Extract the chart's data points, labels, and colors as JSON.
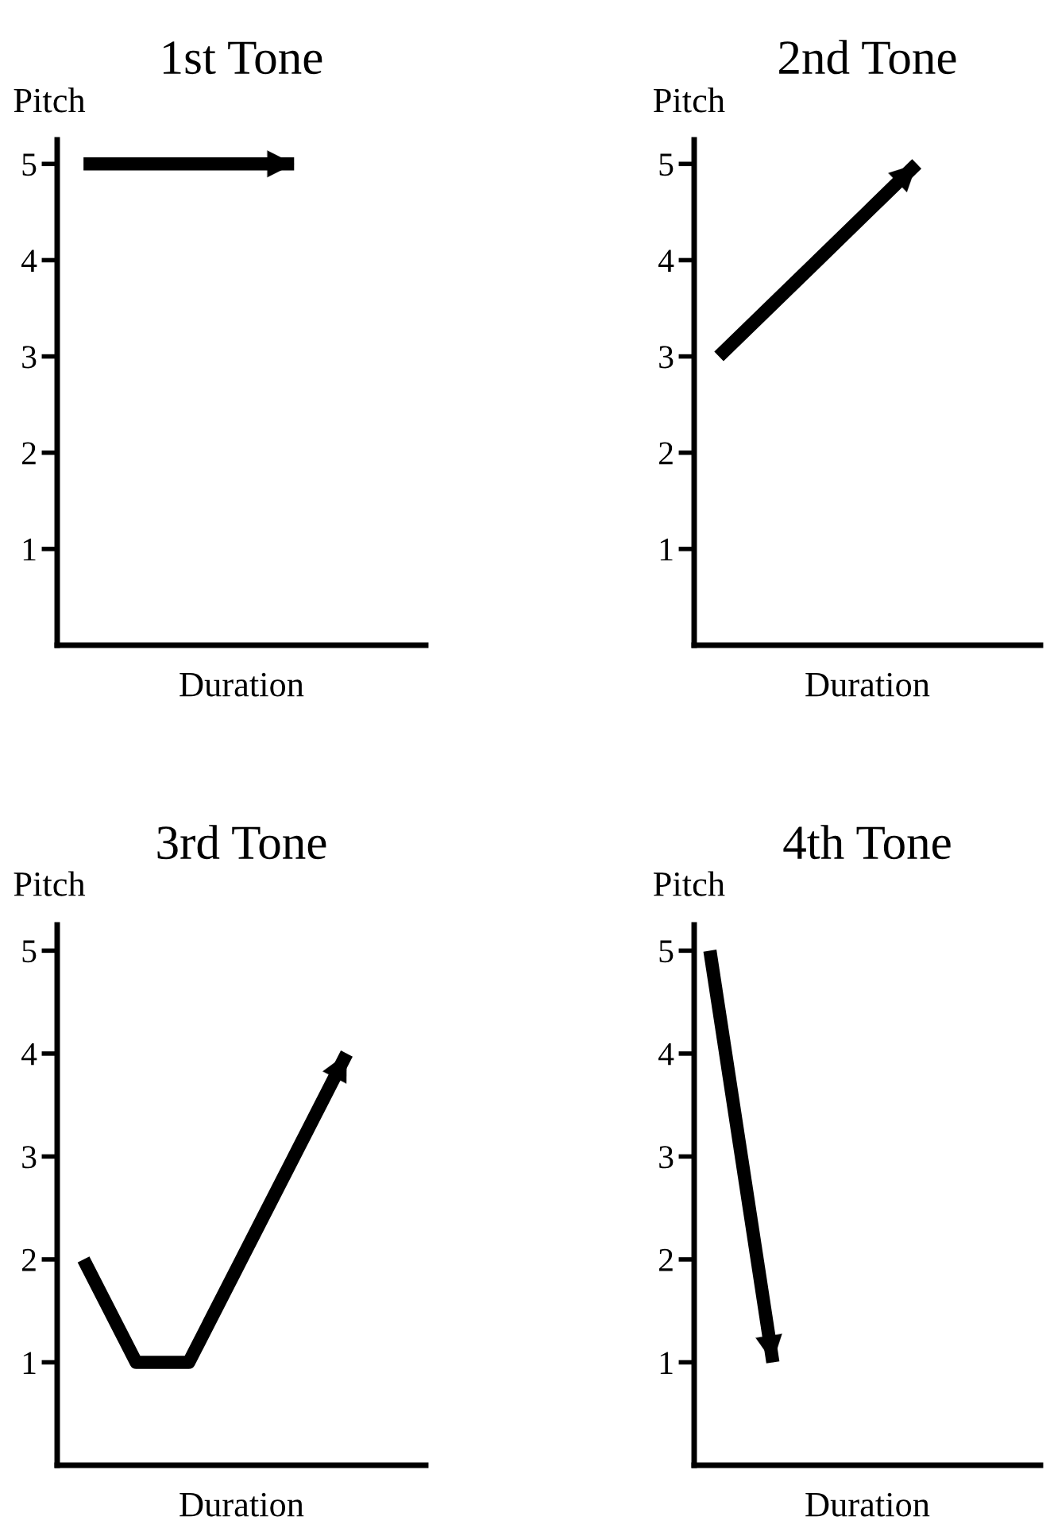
{
  "chart_data": [
    {
      "type": "line",
      "title": "1st Tone",
      "ylabel": "Pitch",
      "xlabel": "Duration",
      "categories": [
        null,
        null,
        null,
        null,
        null,
        null,
        null
      ],
      "series": [
        {
          "color": "#000000",
          "values": [
            5,
            5,
            5,
            5,
            5,
            null,
            null
          ]
        }
      ],
      "ylim": [
        0,
        5.25
      ],
      "yticks": [
        1,
        2,
        3,
        4,
        5
      ],
      "tick_labels": "y",
      "line_style": "solid",
      "grid": false
    },
    {
      "type": "line",
      "title": "2nd Tone",
      "ylabel": "Pitch",
      "xlabel": "Duration",
      "categories": [
        null,
        null,
        null,
        null,
        null,
        null,
        null
      ],
      "series": [
        {
          "color": "#000000",
          "values": [
            3,
            3.5,
            4,
            4.5,
            5,
            null,
            null
          ]
        }
      ],
      "ylim": [
        0,
        5.25
      ],
      "yticks": [
        1,
        2,
        3,
        4,
        5
      ],
      "tick_labels": "y",
      "line_style": "solid",
      "grid": false
    },
    {
      "type": "line",
      "title": "3rd Tone",
      "ylabel": "Pitch",
      "xlabel": "Duration",
      "categories": [
        null,
        null,
        null,
        null,
        null,
        null,
        null
      ],
      "series": [
        {
          "color": "#000000",
          "values": [
            2,
            1,
            1,
            2,
            3,
            4,
            null
          ]
        }
      ],
      "ylim": [
        0,
        5.25
      ],
      "yticks": [
        1,
        2,
        3,
        4,
        5
      ],
      "tick_labels": "y",
      "line_style": "solid",
      "grid": false
    },
    {
      "type": "line",
      "title": "4th Tone",
      "ylabel": "Pitch",
      "xlabel": "Duration",
      "categories": [
        null,
        null,
        null,
        null,
        null,
        null,
        null,
        null,
        null,
        null,
        null
      ],
      "series": [
        {
          "color": "#000000",
          "values": [
            5,
            3,
            1,
            null,
            null,
            null,
            null,
            null,
            null,
            null,
            null
          ]
        }
      ],
      "ylim": [
        0,
        5.25
      ],
      "yticks": [
        1,
        2,
        3,
        4,
        5
      ],
      "tick_labels": "y",
      "line_style": "solid",
      "grid": false
    }
  ]
}
